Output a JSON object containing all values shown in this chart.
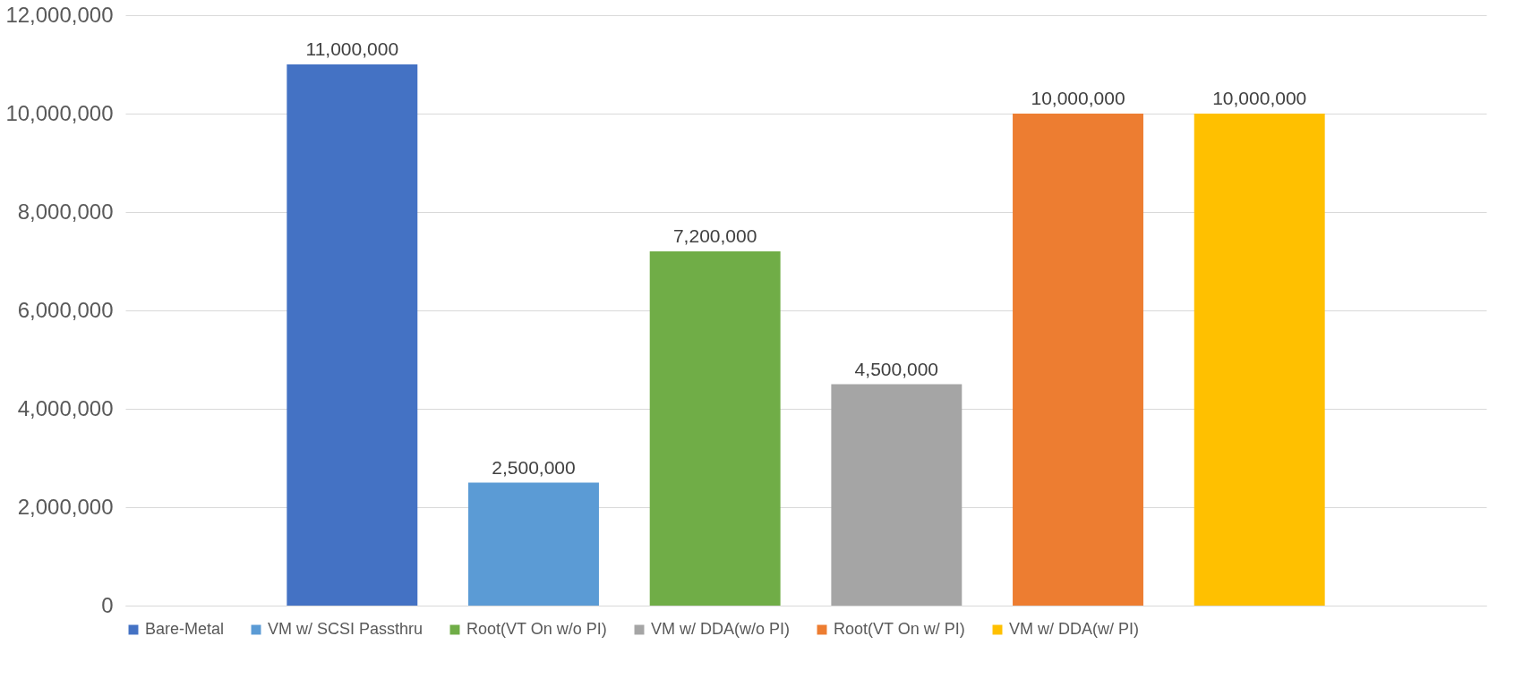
{
  "chart_data": {
    "type": "bar",
    "categories": [
      null
    ],
    "series": [
      {
        "name": "Bare-Metal",
        "color": "#4472c4",
        "values": [
          11000000
        ],
        "value_labels": [
          "11,000,000"
        ]
      },
      {
        "name": "VM w/ SCSI Passthru",
        "color": "#5b9bd5",
        "values": [
          2500000
        ],
        "value_labels": [
          "2,500,000"
        ]
      },
      {
        "name": "Root(VT On w/o PI)",
        "color": "#70ad47",
        "values": [
          7200000
        ],
        "value_labels": [
          "7,200,000"
        ]
      },
      {
        "name": "VM w/ DDA(w/o PI)",
        "color": "#a5a5a5",
        "values": [
          4500000
        ],
        "value_labels": [
          "4,500,000"
        ]
      },
      {
        "name": "Root(VT On w/ PI)",
        "color": "#ed7d31",
        "values": [
          10000000
        ],
        "value_labels": [
          "10,000,000"
        ]
      },
      {
        "name": "VM w/ DDA(w/ PI)",
        "color": "#ffc000",
        "values": [
          10000000
        ],
        "value_labels": [
          "10,000,000"
        ]
      }
    ],
    "ylim": [
      0,
      12000000
    ],
    "yticks": [
      0,
      {
        "value": 2000000,
        "label": "2,000,000"
      },
      {
        "value": 4000000,
        "label": "4,000,000"
      },
      {
        "value": 6000000,
        "label": "6,000,000"
      },
      {
        "value": 8000000,
        "label": "8,000,000"
      },
      {
        "value": 10000000,
        "label": "10,000,000"
      },
      {
        "value": 12000000,
        "label": "12,000,000"
      }
    ],
    "grid": "y",
    "legend": "bottom",
    "tick_labels": "y"
  }
}
